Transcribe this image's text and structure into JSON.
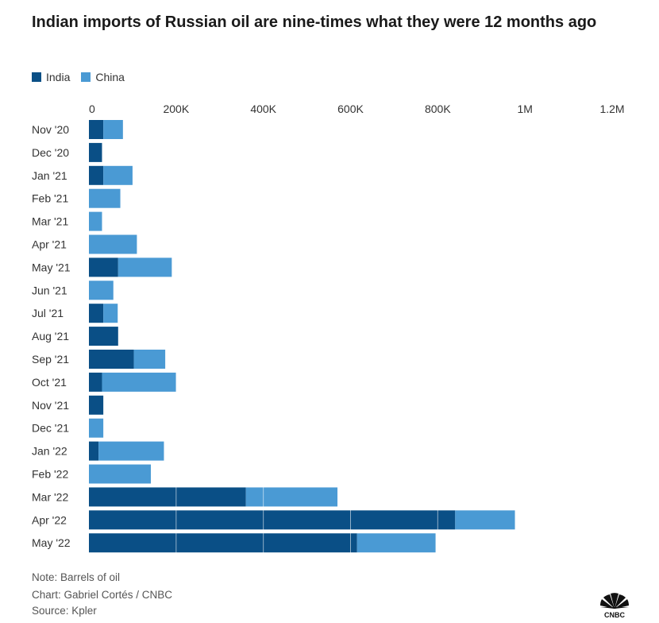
{
  "chart_data": {
    "type": "bar",
    "orientation": "horizontal",
    "stacked": true,
    "title": "Indian imports of Russian oil are nine-times what they were 12 months ago",
    "xlabel": "",
    "ylabel": "",
    "xlim": [
      0,
      1200000
    ],
    "x_ticks": [
      0,
      200000,
      400000,
      600000,
      800000,
      1000000,
      1200000
    ],
    "x_tick_labels": [
      "0",
      "200K",
      "400K",
      "600K",
      "800K",
      "1M",
      "1.2M"
    ],
    "grid": true,
    "legend_position": "top-left",
    "categories": [
      "Nov '20",
      "Dec '20",
      "Jan '21",
      "Feb '21",
      "Mar '21",
      "Apr '21",
      "May '21",
      "Jun '21",
      "Jul '21",
      "Aug '21",
      "Sep '21",
      "Oct '21",
      "Nov '21",
      "Dec '21",
      "Jan '22",
      "Feb '22",
      "Mar '22",
      "Apr '22",
      "May '22"
    ],
    "series": [
      {
        "name": "India",
        "color": "#0a4f86",
        "values": [
          33000,
          30000,
          33000,
          0,
          0,
          0,
          67000,
          0,
          33000,
          67000,
          103000,
          30000,
          33000,
          0,
          22000,
          0,
          360000,
          840000,
          615000
        ]
      },
      {
        "name": "China",
        "color": "#4a9ad4",
        "values": [
          45000,
          0,
          67000,
          72000,
          30000,
          110000,
          123000,
          56000,
          33000,
          0,
          72000,
          170000,
          0,
          33000,
          150000,
          142000,
          210000,
          137000,
          180000
        ]
      }
    ]
  },
  "footer": {
    "note": "Note: Barrels of oil",
    "credit": "Chart: Gabriel Cortés / CNBC",
    "source": "Source: Kpler"
  },
  "logo": {
    "name": "cnbc-logo",
    "text": "CNBC"
  }
}
